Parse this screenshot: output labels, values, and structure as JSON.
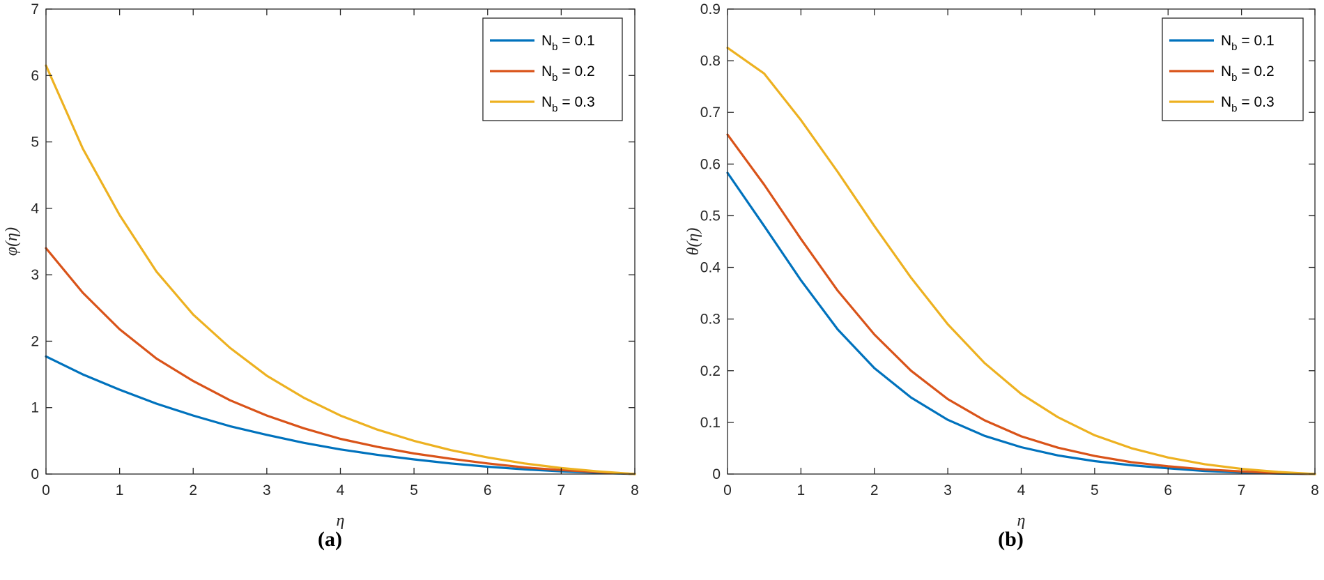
{
  "chart_data": [
    {
      "type": "line",
      "panel": "a",
      "caption": "(a)",
      "xlabel": "η",
      "ylabel": "φ(η)",
      "xlim": [
        0,
        8
      ],
      "ylim": [
        0,
        7
      ],
      "xticks": [
        0,
        1,
        2,
        3,
        4,
        5,
        6,
        7,
        8
      ],
      "yticks": [
        0,
        1,
        2,
        3,
        4,
        5,
        6,
        7
      ],
      "grid": false,
      "legend_position": "top-right",
      "x": [
        0,
        0.5,
        1,
        1.5,
        2,
        2.5,
        3,
        3.5,
        4,
        4.5,
        5,
        5.5,
        6,
        6.5,
        7,
        7.5,
        8
      ],
      "series": [
        {
          "name_main": "N",
          "name_sub": "b",
          "name_rest": " = 0.1",
          "color": "#0072BD",
          "values": [
            1.77,
            1.5,
            1.27,
            1.06,
            0.88,
            0.72,
            0.59,
            0.47,
            0.37,
            0.29,
            0.22,
            0.16,
            0.11,
            0.07,
            0.04,
            0.02,
            0.0
          ]
        },
        {
          "name_main": "N",
          "name_sub": "b",
          "name_rest": " = 0.2",
          "color": "#D95319",
          "values": [
            3.4,
            2.73,
            2.18,
            1.74,
            1.4,
            1.11,
            0.88,
            0.69,
            0.53,
            0.41,
            0.31,
            0.23,
            0.16,
            0.1,
            0.06,
            0.03,
            0.0
          ]
        },
        {
          "name_main": "N",
          "name_sub": "b",
          "name_rest": " = 0.3",
          "color": "#EDB120",
          "values": [
            6.15,
            4.9,
            3.9,
            3.05,
            2.4,
            1.9,
            1.48,
            1.15,
            0.88,
            0.67,
            0.5,
            0.36,
            0.25,
            0.16,
            0.09,
            0.04,
            0.0
          ]
        }
      ]
    },
    {
      "type": "line",
      "panel": "b",
      "caption": "(b)",
      "xlabel": "η",
      "ylabel": "θ(η)",
      "xlim": [
        0,
        8
      ],
      "ylim": [
        0,
        0.9
      ],
      "xticks": [
        0,
        1,
        2,
        3,
        4,
        5,
        6,
        7,
        8
      ],
      "yticks": [
        0,
        0.1,
        0.2,
        0.3,
        0.4,
        0.5,
        0.6,
        0.7,
        0.8,
        0.9
      ],
      "grid": false,
      "legend_position": "top-right",
      "x": [
        0,
        0.5,
        1,
        1.5,
        2,
        2.5,
        3,
        3.5,
        4,
        4.5,
        5,
        5.5,
        6,
        6.5,
        7,
        7.5,
        8
      ],
      "series": [
        {
          "name_main": "N",
          "name_sub": "b",
          "name_rest": " = 0.1",
          "color": "#0072BD",
          "values": [
            0.583,
            0.48,
            0.375,
            0.28,
            0.205,
            0.148,
            0.105,
            0.074,
            0.052,
            0.036,
            0.025,
            0.017,
            0.011,
            0.006,
            0.003,
            0.001,
            0.0
          ]
        },
        {
          "name_main": "N",
          "name_sub": "b",
          "name_rest": " = 0.2",
          "color": "#D95319",
          "values": [
            0.657,
            0.56,
            0.455,
            0.355,
            0.27,
            0.2,
            0.145,
            0.104,
            0.073,
            0.051,
            0.035,
            0.023,
            0.015,
            0.009,
            0.005,
            0.002,
            0.0
          ]
        },
        {
          "name_main": "N",
          "name_sub": "b",
          "name_rest": " = 0.3",
          "color": "#EDB120",
          "values": [
            0.825,
            0.775,
            0.685,
            0.585,
            0.48,
            0.38,
            0.29,
            0.215,
            0.155,
            0.11,
            0.075,
            0.05,
            0.032,
            0.019,
            0.01,
            0.004,
            0.0
          ]
        }
      ]
    }
  ]
}
